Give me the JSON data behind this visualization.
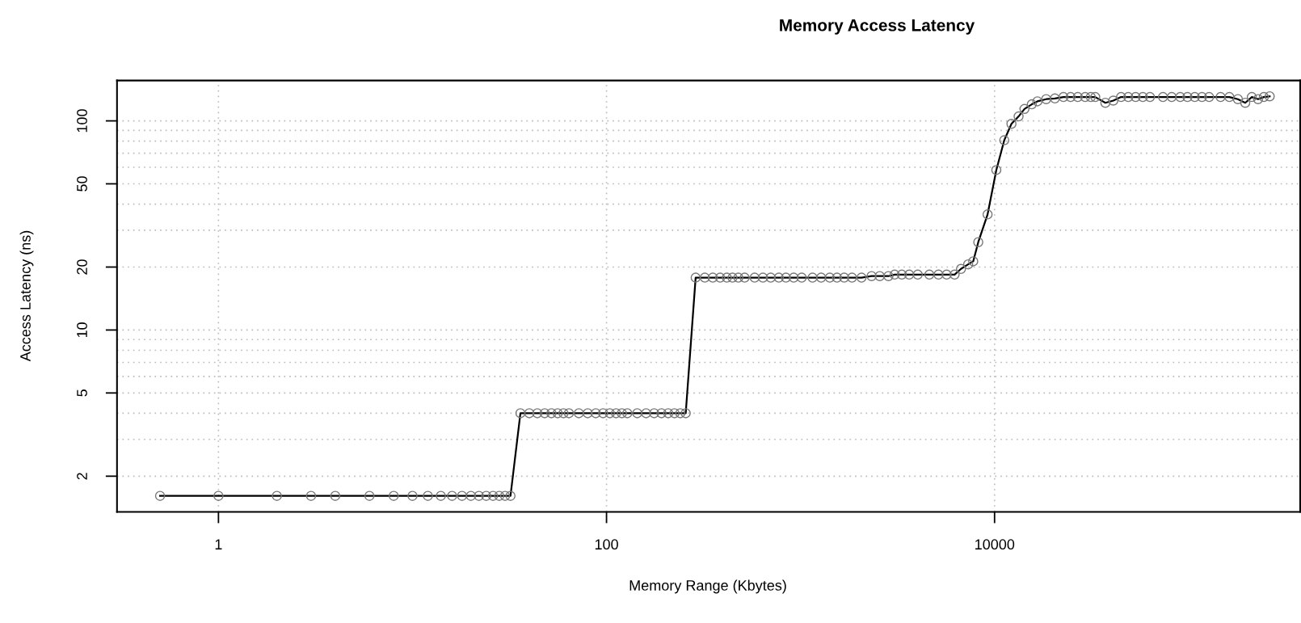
{
  "chart_data": {
    "type": "line",
    "title": "Memory Access Latency",
    "xlabel": "Memory Range (Kbytes)",
    "ylabel": "Access Latency (ns)",
    "log": "xy",
    "grid": true,
    "marker": "circle",
    "line_style": "solid",
    "xlim": [
      0.3,
      376000
    ],
    "ylim": [
      1.35,
      156
    ],
    "xticks": [
      1,
      100,
      10000
    ],
    "yticks": [
      2,
      5,
      10,
      20,
      50,
      100
    ],
    "series": [
      {
        "color": "#000000",
        "x": [
          0.5,
          1,
          2,
          3,
          4,
          6,
          8,
          10,
          12,
          14,
          16,
          18,
          20,
          22,
          24,
          26,
          28,
          30,
          32,
          36,
          40,
          44,
          48,
          52,
          56,
          60,
          64,
          72,
          80,
          88,
          96,
          104,
          112,
          120,
          128,
          144,
          160,
          176,
          192,
          208,
          224,
          240,
          256,
          288,
          321,
          353,
          385,
          417,
          446,
          478,
          515,
          580,
          640,
          702,
          773,
          841,
          922,
          1014,
          1153,
          1277,
          1415,
          1541,
          1679,
          1842,
          2062,
          2323,
          2559,
          2837,
          3055,
          3327,
          3631,
          4018,
          4613,
          5140,
          5662,
          6223,
          6714,
          7311,
          7762,
          8241,
          9204,
          10210,
          11220,
          12220,
          13300,
          14260,
          15560,
          16630,
          18450,
          20460,
          22650,
          24660,
          26850,
          29310,
          31330,
          33040,
          37240,
          40930,
          44870,
          48870,
          53330,
          58080,
          63240,
          73790,
          81850,
          90570,
          98620,
          107600,
          117200,
          127600,
          146200,
          162200,
          179500,
          195900,
          211800,
          228000,
          244300,
          261800
        ],
        "values": [
          1.61,
          1.61,
          1.61,
          1.61,
          1.61,
          1.61,
          1.61,
          1.61,
          1.61,
          1.61,
          1.61,
          1.61,
          1.61,
          1.61,
          1.61,
          1.61,
          1.61,
          1.61,
          1.61,
          4.0,
          4.0,
          4.0,
          4.0,
          4.0,
          4.0,
          4.0,
          4.0,
          4.0,
          4.0,
          4.0,
          4.0,
          4.0,
          4.0,
          4.0,
          4.0,
          4.0,
          4.0,
          4.0,
          4.0,
          4.0,
          4.0,
          4.0,
          4.0,
          17.8,
          17.8,
          17.8,
          17.8,
          17.8,
          17.8,
          17.8,
          17.8,
          17.8,
          17.8,
          17.8,
          17.8,
          17.8,
          17.8,
          17.8,
          17.8,
          17.8,
          17.8,
          17.8,
          17.8,
          17.8,
          17.8,
          18.1,
          18.1,
          18.1,
          18.4,
          18.4,
          18.4,
          18.4,
          18.4,
          18.4,
          18.4,
          18.4,
          19.6,
          20.6,
          21.3,
          26.3,
          35.7,
          58.2,
          80.8,
          96.8,
          105,
          114,
          120,
          124,
          127,
          128,
          130,
          130,
          130,
          130,
          130,
          130,
          122,
          125,
          130,
          130,
          130,
          130,
          130,
          130,
          130,
          130,
          130,
          130,
          130,
          130,
          130,
          130,
          127,
          122,
          130,
          127,
          130,
          131
        ]
      }
    ]
  }
}
